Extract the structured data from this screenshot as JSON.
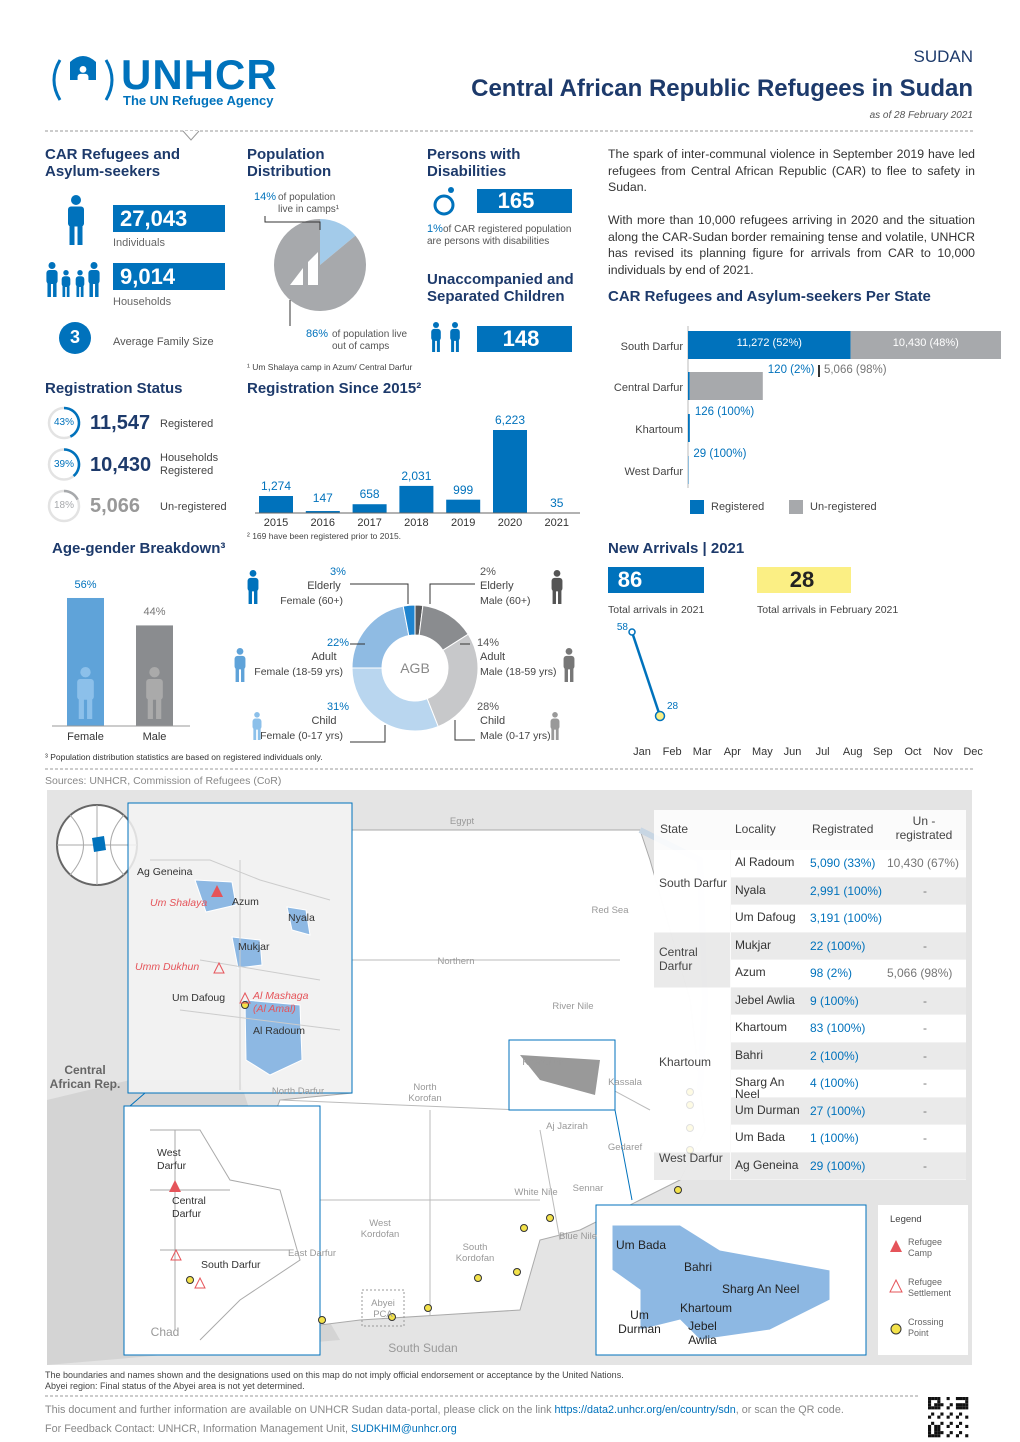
{
  "header": {
    "logo_name": "UNHCR",
    "logo_tagline": "The UN Refugee Agency",
    "country": "SUDAN",
    "title": "Central African Republic Refugees in Sudan",
    "date": "as of 28 February 2021"
  },
  "refugees": {
    "title": "CAR Refugees and Asylum-seekers",
    "individuals": "27,043",
    "individuals_label": "Individuals",
    "households": "9,014",
    "households_label": "Households",
    "family_size": "3",
    "family_size_label": "Average Family Size"
  },
  "population_distribution": {
    "type": "pie",
    "title": "Population Distribution",
    "values": [
      14,
      86
    ],
    "value_labels": [
      "14%",
      "86%"
    ],
    "texts": [
      "of population live in camps¹",
      "of population live out of camps"
    ],
    "colors": [
      "#a3cbea",
      "#a7a9ac"
    ],
    "footnote": "¹ Um Shalaya camp in Azum/ Central Darfur"
  },
  "disabilities": {
    "title": "Persons with Disabilities",
    "value": "165",
    "pct": "1%",
    "text": "of CAR registered population are persons with disabilities"
  },
  "unaccompanied": {
    "title": "Unaccompanied and Separated Children",
    "value": "148"
  },
  "narrative": [
    "The spark of inter-communal violence in September 2019 have led refugees from Central African Republic (CAR) to flee to safety in Sudan.",
    "With more than 10,000 refugees arriving in 2020 and the situation along the CAR-Sudan border remaining tense and volatile, UNHCR has revised its planning figure for arrivals from CAR to 10,000 individuals by end of 2021."
  ],
  "registration_status": {
    "title": "Registration Status",
    "rows": [
      {
        "pct": 43,
        "pct_label": "43%",
        "value": "11,547",
        "label": "Registered",
        "color": "#0072bc"
      },
      {
        "pct": 39,
        "pct_label": "39%",
        "value": "10,430",
        "label": "Households Registered",
        "color": "#0072bc"
      },
      {
        "pct": 18,
        "pct_label": "18%",
        "value": "5,066",
        "label": "Un-registered",
        "color": "#a7a9ac"
      }
    ]
  },
  "registration_since_2015": {
    "type": "bar",
    "title": "Registration Since 2015²",
    "categories": [
      "2015",
      "2016",
      "2017",
      "2018",
      "2019",
      "2020",
      "2021"
    ],
    "values": [
      1274,
      147,
      658,
      2031,
      999,
      6223,
      35
    ],
    "value_labels": [
      "1,274",
      "147",
      "658",
      "2,031",
      "999",
      "6,223",
      "35"
    ],
    "color": "#0072bc",
    "footnote": "² 169 have been registered prior to 2015."
  },
  "age_gender": {
    "type": "bar",
    "title": "Age-gender Breakdown³",
    "categories": [
      "Female",
      "Male"
    ],
    "values": [
      56,
      44
    ],
    "value_labels": [
      "56%",
      "44%"
    ],
    "colors": [
      "#5fa3d9",
      "#8a8c8f"
    ]
  },
  "agb": {
    "type": "donut",
    "center_label": "AGB",
    "segments": [
      {
        "age": "Elderly",
        "sex": "Male (60+)",
        "value": 2,
        "value_label": "2%",
        "color": "#58595b"
      },
      {
        "age": "Adult",
        "sex": "Male (18-59 yrs)",
        "value": 14,
        "value_label": "14%",
        "color": "#8a8c8f"
      },
      {
        "age": "Child",
        "sex": "Male (0-17 yrs)",
        "value": 28,
        "value_label": "28%",
        "color": "#c7c8ca"
      },
      {
        "age": "Child",
        "sex": "Female (0-17 yrs)",
        "value": 31,
        "value_label": "31%",
        "color": "#b9d6ef"
      },
      {
        "age": "Adult",
        "sex": "Female (18-59 yrs)",
        "value": 22,
        "value_label": "22%",
        "color": "#8fbbe3"
      },
      {
        "age": "Elderly",
        "sex": "Female (60+)",
        "value": 3,
        "value_label": "3%",
        "color": "#1f84cf"
      }
    ]
  },
  "state_chart": {
    "type": "bar",
    "title": "CAR Refugees and Asylum-seekers Per State",
    "categories": [
      "South Darfur",
      "Central Darfur",
      "Khartoum",
      "West Darfur"
    ],
    "series": [
      {
        "name": "Registered",
        "color": "#0072bc",
        "values": [
          11272,
          120,
          126,
          29
        ],
        "value_labels": [
          "11,272 (52%)",
          "120 (2%)",
          "126 (100%)",
          "29 (100%)"
        ]
      },
      {
        "name": "Un-registered",
        "color": "#a7a9ac",
        "values": [
          10430,
          5066,
          null,
          null
        ],
        "value_labels": [
          "10,430 (48%)",
          "5,066 (98%)",
          null,
          null
        ]
      }
    ]
  },
  "new_arrivals": {
    "type": "line",
    "title": "New Arrivals | 2021",
    "total_2021": "86",
    "total_2021_label": "Total arrivals in 2021",
    "total_feb": "28",
    "total_feb_label": "Total arrivals in February 2021",
    "categories": [
      "Jan",
      "Feb",
      "Mar",
      "Apr",
      "May",
      "Jun",
      "Jul",
      "Aug",
      "Sep",
      "Oct",
      "Nov",
      "Dec"
    ],
    "values": [
      58,
      28,
      null,
      null,
      null,
      null,
      null,
      null,
      null,
      null,
      null,
      null
    ],
    "color": "#0072bc"
  },
  "footnote": "³ Population distribution statistics are based on registered individuals only.",
  "sources": "Sources: UNHCR, Commission of Refugees (CoR)",
  "map": {
    "labels": [
      "Egypt",
      "Red Sea",
      "Northern",
      "River Nile",
      "Khartoum",
      "Kassala",
      "North Darfur",
      "North Korofan",
      "Aj Jazirah",
      "Gedaref",
      "White Nile",
      "Sennar",
      "West Kordofan",
      "South Kordofan",
      "East Darfur",
      "Blue Nile",
      "Abyei PCA",
      "South Sudan",
      "Chad",
      "Central African Rep."
    ],
    "inset_central": [
      "Ag Geneina",
      "Um Shalaya",
      "Azum",
      "Nyala",
      "Mukjar",
      "Umm Dukhun",
      "Um Dafoug",
      "Al Mashaga (Al Amal)",
      "Al Radoum"
    ],
    "inset_west": [
      "West Darfur",
      "Central Darfur",
      "South Darfur"
    ],
    "inset_khartoum": [
      "Um Bada",
      "Bahri",
      "Sharg An Neel",
      "Khartoum",
      "Um Durman",
      "Jebel Awlia"
    ],
    "legend": {
      "title": "Legend",
      "items": [
        "Refugee Camp",
        "Refugee Settlement",
        "Crossing Point"
      ]
    },
    "table": {
      "headers": [
        "State",
        "Locality",
        "Registrated",
        "Un - registrated"
      ],
      "groups": [
        {
          "state": "South Darfur",
          "rows": [
            [
              "Al Radoum",
              "5,090 (33%)",
              "10,430 (67%)"
            ],
            [
              "Nyala",
              "2,991 (100%)",
              "-"
            ],
            [
              "Um Dafoug",
              "3,191 (100%)",
              null
            ]
          ]
        },
        {
          "state": "Central Darfur",
          "rows": [
            [
              "Mukjar",
              "22 (100%)",
              "-"
            ],
            [
              "Azum",
              "98 (2%)",
              "5,066 (98%)"
            ]
          ]
        },
        {
          "state": "Khartoum",
          "rows": [
            [
              "Jebel Awlia",
              "9 (100%)",
              "-"
            ],
            [
              "Khartoum",
              "83 (100%)",
              "-"
            ],
            [
              "Bahri",
              "2 (100%)",
              "-"
            ],
            [
              "Sharg An Neel",
              "4 (100%)",
              "-"
            ],
            [
              "Um Durman",
              "27 (100%)",
              "-"
            ],
            [
              "Um Bada",
              "1 (100%)",
              "-"
            ]
          ]
        },
        {
          "state": "West Darfur",
          "rows": [
            [
              "Ag Geneina",
              "29 (100%)",
              "-"
            ]
          ]
        }
      ]
    }
  },
  "footer": {
    "disclaimer": "The boundaries and names shown and the designations used on this map do not imply official endorsement or acceptance by the United Nations.",
    "abyei": "Abyei region: Final status of the Abyei area is not yet determined.",
    "portal_text": "This document and further information are available on UNHCR Sudan data-portal, please click on the link",
    "portal_link": "https://data2.unhcr.org/en/country/sdn",
    "portal_end": ", or scan the QR code.",
    "contact": "For Feedback Contact: UNHCR, Information Management Unit,",
    "email": "SUDKHIM@unhcr.org"
  }
}
